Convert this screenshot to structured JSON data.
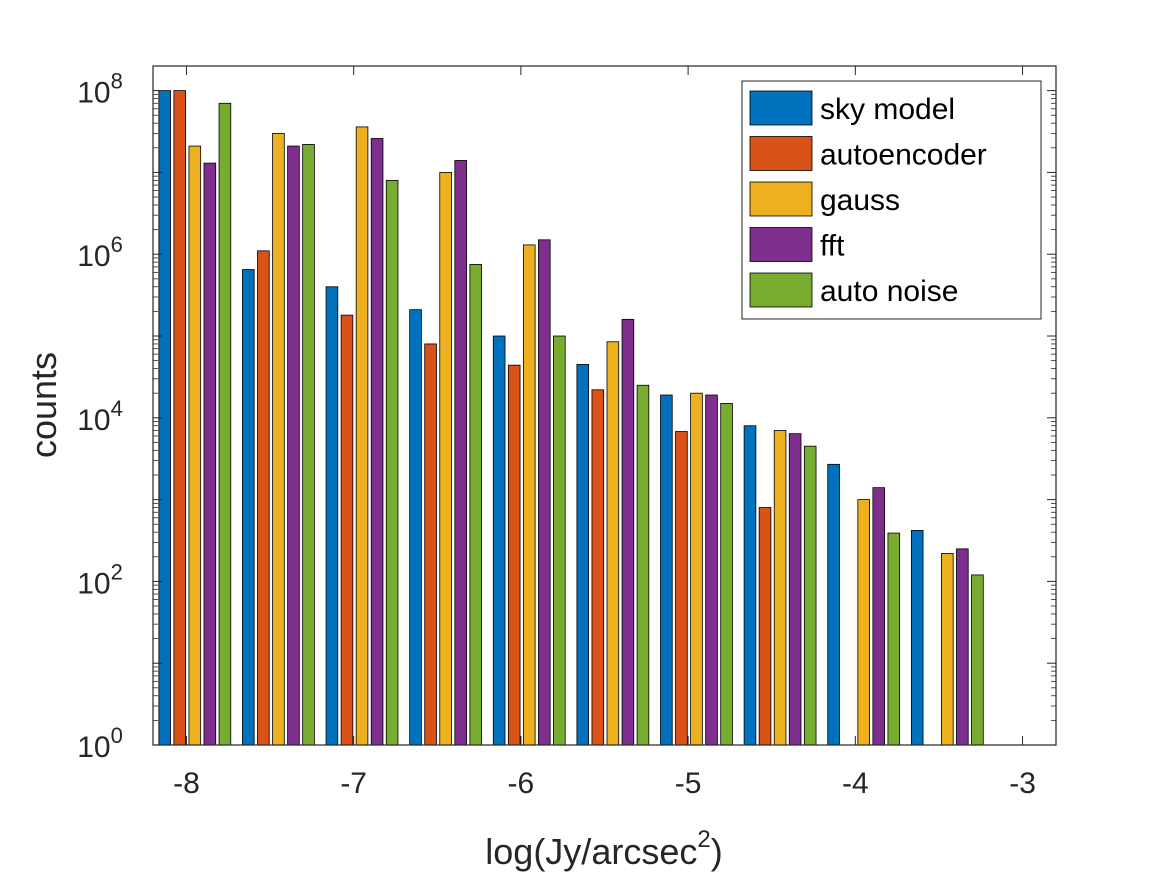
{
  "chart_data": {
    "type": "bar",
    "xlabel": {
      "text": "log(Jy/arcsec",
      "sup": "2",
      "close": ")"
    },
    "ylabel": "counts",
    "y_scale": "log",
    "ylim": [
      1,
      200000000
    ],
    "xlim": [
      -8.2,
      -2.8
    ],
    "x_ticks": [
      -8,
      -7,
      -6,
      -5,
      -4,
      -3
    ],
    "x_tick_labels": [
      "-8",
      "-7",
      "-6",
      "-5",
      "-4",
      "-3"
    ],
    "y_ticks": [
      {
        "base": "10",
        "exp": "0",
        "value": 1
      },
      {
        "base": "10",
        "exp": "2",
        "value": 100
      },
      {
        "base": "10",
        "exp": "4",
        "value": 10000
      },
      {
        "base": "10",
        "exp": "6",
        "value": 1000000
      },
      {
        "base": "10",
        "exp": "8",
        "value": 100000000
      }
    ],
    "bin_centers": [
      -7.95,
      -7.45,
      -6.95,
      -6.45,
      -5.95,
      -5.45,
      -4.95,
      -4.45,
      -3.95,
      -3.45
    ],
    "series": [
      {
        "name": "sky model",
        "color": "#0072BD",
        "values": [
          100000000,
          650000,
          400000,
          210000,
          100000,
          45000,
          19000,
          8000,
          2700,
          420
        ]
      },
      {
        "name": "autoencoder",
        "color": "#D95319",
        "values": [
          100000000,
          1100000,
          180000,
          80000,
          44000,
          22000,
          6800,
          800,
          null,
          null
        ]
      },
      {
        "name": "gauss",
        "color": "#EDB120",
        "values": [
          21000000,
          30000000,
          36000000,
          10000000,
          1300000,
          85000,
          20000,
          7000,
          1000,
          220
        ]
      },
      {
        "name": "fft",
        "color": "#7E2F8E",
        "values": [
          13000000,
          21000000,
          26000000,
          14000000,
          1500000,
          160000,
          19000,
          6400,
          1400,
          250
        ]
      },
      {
        "name": "auto noise",
        "color": "#77AC30",
        "values": [
          70000000,
          22000000,
          8000000,
          750000,
          100000,
          25000,
          15000,
          4500,
          390,
          120
        ]
      }
    ],
    "legend_position": "top-right",
    "grid": false
  }
}
